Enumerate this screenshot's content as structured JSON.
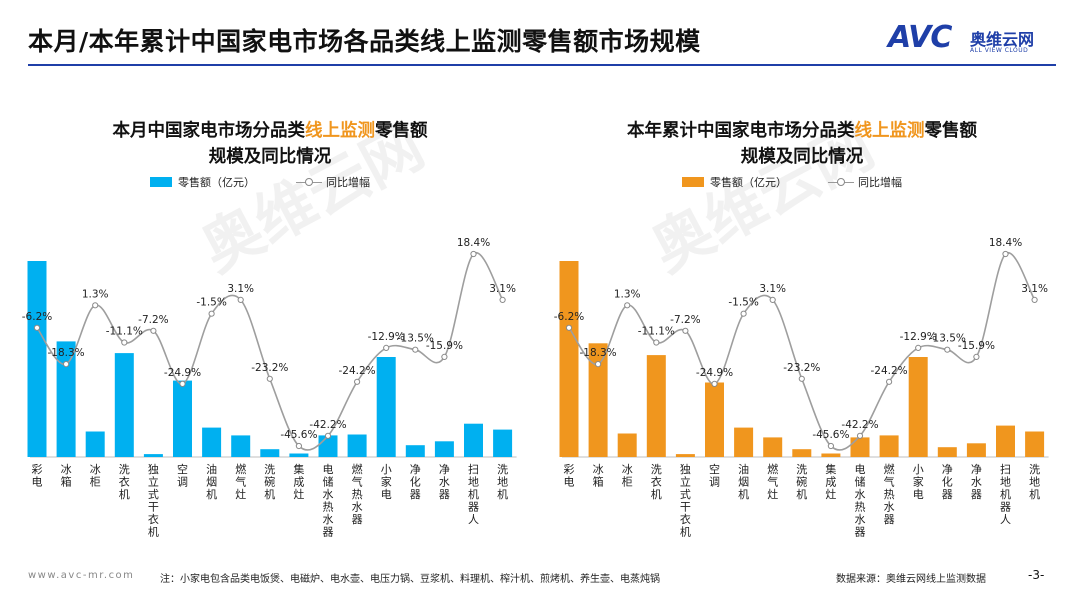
{
  "header": {
    "title": "本月/本年累计中国家电市场各品类线上监测零售额市场规模",
    "logo_text": "AVC",
    "logo_cn": "奥维云网",
    "logo_en": "ALL VIEW CLOUD"
  },
  "colors": {
    "left_bar": "#00b0f0",
    "right_bar": "#f0961e",
    "line": "#999999",
    "rule": "#1f3fa8"
  },
  "chart_data": [
    {
      "type": "bar",
      "title_pre": "本月中国家电市场分品类",
      "title_hl": "线上监测",
      "title_post": "零售额",
      "title_line2": "规模及同比情况",
      "legend_bar": "零售额（亿元）",
      "legend_line": "同比增幅",
      "categories": [
        "彩电",
        "冰箱",
        "冰柜",
        "洗衣机",
        "独立式干衣机",
        "空调",
        "油烟机",
        "燃气灶",
        "洗碗机",
        "集成灶",
        "电储水热水器",
        "燃气热水器",
        "小家电",
        "净化器",
        "净水器",
        "扫地机器人",
        "洗地机"
      ],
      "series": [
        {
          "type": "bar",
          "values": [
            100,
            59,
            13,
            53,
            1.5,
            39,
            15,
            11,
            4,
            1.8,
            11,
            11.5,
            51,
            6,
            8,
            17,
            14
          ]
        },
        {
          "type": "line",
          "values": [
            -6.2,
            -18.3,
            1.3,
            -11.1,
            -7.2,
            -24.9,
            -1.5,
            3.1,
            -23.2,
            -45.6,
            -42.2,
            -24.2,
            -12.9,
            -13.5,
            -15.9,
            18.4,
            3.1
          ],
          "labels": [
            "-6.2%",
            "-18.3%",
            "1.3%",
            "-11.1%",
            "-7.2%",
            "-24.9%",
            "-1.5%",
            "3.1%",
            "-23.2%",
            "-45.6%",
            "-42.2%",
            "-24.2%",
            "-12.9%",
            "-13.5%",
            "-15.9%",
            "18.4%",
            "3.1%"
          ]
        }
      ]
    },
    {
      "type": "bar",
      "title_pre": "本年累计中国家电市场分品类",
      "title_hl": "线上监测",
      "title_post": "零售额",
      "title_line2": "规模及同比情况",
      "legend_bar": "零售额（亿元）",
      "legend_line": "同比增幅",
      "categories": [
        "彩电",
        "冰箱",
        "冰柜",
        "洗衣机",
        "独立式干衣机",
        "空调",
        "油烟机",
        "燃气灶",
        "洗碗机",
        "集成灶",
        "电储水热水器",
        "燃气热水器",
        "小家电",
        "净化器",
        "净水器",
        "扫地机器人",
        "洗地机"
      ],
      "series": [
        {
          "type": "bar",
          "values": [
            100,
            58,
            12,
            52,
            1.5,
            38,
            15,
            10,
            4,
            1.8,
            10,
            11,
            51,
            5,
            7,
            16,
            13
          ]
        },
        {
          "type": "line",
          "values": [
            -6.2,
            -18.3,
            1.3,
            -11.1,
            -7.2,
            -24.9,
            -1.5,
            3.1,
            -23.2,
            -45.6,
            -42.2,
            -24.2,
            -12.9,
            -13.5,
            -15.9,
            18.4,
            3.1
          ],
          "labels": [
            "-6.2%",
            "-18.3%",
            "1.3%",
            "-11.1%",
            "-7.2%",
            "-24.9%",
            "-1.5%",
            "3.1%",
            "-23.2%",
            "-45.6%",
            "-42.2%",
            "-24.2%",
            "-12.9%",
            "-13.5%",
            "-15.9%",
            "18.4%",
            "3.1%"
          ]
        }
      ]
    }
  ],
  "footer": {
    "url": "www.avc-mr.com",
    "note": "注：小家电包含品类电饭煲、电磁炉、电水壶、电压力锅、豆浆机、料理机、榨汁机、煎烤机、养生壶、电蒸炖锅",
    "source": "数据来源：奥维云网线上监测数据",
    "page": "-3-"
  }
}
